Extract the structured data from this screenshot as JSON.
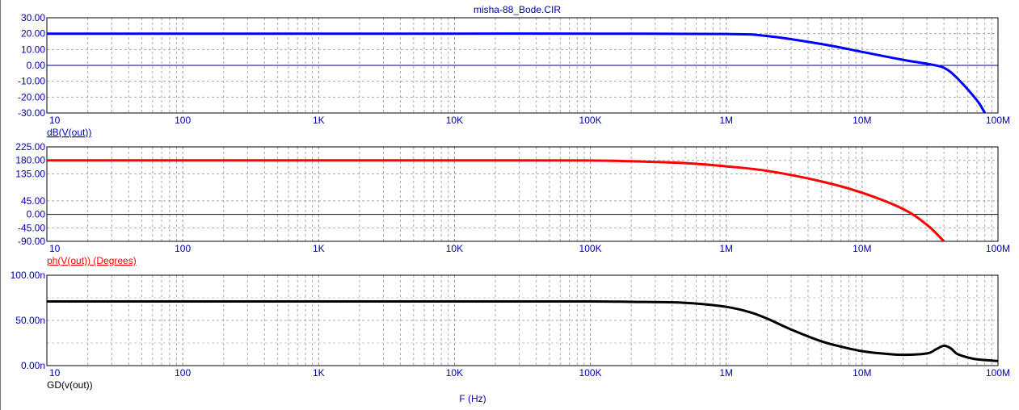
{
  "window": {
    "title": "misha-88_Bode.CIR"
  },
  "chart_data": [
    {
      "type": "line",
      "title": "misha-88_Bode.CIR",
      "xlabel": "",
      "ylabel": "dB(V(out))",
      "x_scale": "log",
      "xlim": [
        10,
        100000000
      ],
      "ylim": [
        -30,
        30
      ],
      "grid": true,
      "x_ticks": [
        {
          "value": 10,
          "label": "10"
        },
        {
          "value": 100,
          "label": "100"
        },
        {
          "value": 1000,
          "label": "1K"
        },
        {
          "value": 10000,
          "label": "10K"
        },
        {
          "value": 100000,
          "label": "100K"
        },
        {
          "value": 1000000,
          "label": "1M"
        },
        {
          "value": 10000000,
          "label": "10M"
        },
        {
          "value": 100000000,
          "label": "100M"
        }
      ],
      "y_ticks": [
        {
          "value": 30,
          "label": "30.00"
        },
        {
          "value": 20,
          "label": "20.00"
        },
        {
          "value": 10,
          "label": "10.00"
        },
        {
          "value": 0,
          "label": "0.00"
        },
        {
          "value": -10,
          "label": "-10.00"
        },
        {
          "value": -20,
          "label": "-20.00"
        },
        {
          "value": -30,
          "label": "-30.00"
        }
      ],
      "series": [
        {
          "name": "dB(V(out))",
          "color": "#0000ff",
          "x": [
            10,
            100,
            1000,
            10000,
            100000,
            1000000,
            2000000,
            5000000,
            10000000,
            20000000,
            30000000,
            40000000,
            50000000,
            70000000,
            80000000
          ],
          "y": [
            20,
            20,
            20,
            20,
            20,
            19.8,
            18.5,
            13.5,
            8.5,
            3.5,
            1.0,
            -1.5,
            -8,
            -22,
            -30
          ]
        }
      ]
    },
    {
      "type": "line",
      "xlabel": "",
      "ylabel": "ph(V(out)) (Degrees)",
      "x_scale": "log",
      "xlim": [
        10,
        100000000
      ],
      "ylim": [
        -90,
        225
      ],
      "grid": true,
      "x_ticks": [
        {
          "value": 10,
          "label": "10"
        },
        {
          "value": 100,
          "label": "100"
        },
        {
          "value": 1000,
          "label": "1K"
        },
        {
          "value": 10000,
          "label": "10K"
        },
        {
          "value": 100000,
          "label": "100K"
        },
        {
          "value": 1000000,
          "label": "1M"
        },
        {
          "value": 10000000,
          "label": "10M"
        },
        {
          "value": 100000000,
          "label": "100M"
        }
      ],
      "y_ticks": [
        {
          "value": 225,
          "label": "225.00"
        },
        {
          "value": 180,
          "label": "180.00"
        },
        {
          "value": 135,
          "label": "135.00"
        },
        {
          "value": 45,
          "label": "45.00"
        },
        {
          "value": 0,
          "label": "0.00"
        },
        {
          "value": -45,
          "label": "-45.00"
        },
        {
          "value": -90,
          "label": "-90.00"
        }
      ],
      "series": [
        {
          "name": "ph(V(out)) (Degrees)",
          "color": "#ff0000",
          "x": [
            10,
            100,
            1000,
            10000,
            100000,
            200000,
            500000,
            1000000,
            2000000,
            5000000,
            10000000,
            20000000,
            30000000,
            40000000
          ],
          "y": [
            180,
            180,
            180,
            180,
            179.5,
            177,
            171,
            160,
            145,
            110,
            72,
            18,
            -35,
            -90
          ]
        }
      ]
    },
    {
      "type": "line",
      "xlabel": "F (Hz)",
      "ylabel": "GD(v(out))",
      "x_scale": "log",
      "xlim": [
        10,
        100000000
      ],
      "ylim": [
        0,
        100
      ],
      "y_unit": "n",
      "grid": true,
      "x_ticks": [
        {
          "value": 10,
          "label": "10"
        },
        {
          "value": 100,
          "label": "100"
        },
        {
          "value": 1000,
          "label": "1K"
        },
        {
          "value": 10000,
          "label": "10K"
        },
        {
          "value": 100000,
          "label": "100K"
        },
        {
          "value": 1000000,
          "label": "1M"
        },
        {
          "value": 10000000,
          "label": "10M"
        },
        {
          "value": 100000000,
          "label": "100M"
        }
      ],
      "y_ticks": [
        {
          "value": 100,
          "label": "100.00n"
        },
        {
          "value": 50,
          "label": "50.00n"
        },
        {
          "value": 0,
          "label": "0.00n"
        }
      ],
      "series": [
        {
          "name": "GD(v(out))",
          "color": "#000000",
          "x": [
            10,
            100,
            1000,
            10000,
            100000,
            200000,
            500000,
            1000000,
            1500000,
            2000000,
            3000000,
            5000000,
            7000000,
            10000000,
            15000000,
            20000000,
            30000000,
            35000000,
            40000000,
            45000000,
            50000000,
            60000000,
            70000000,
            100000000
          ],
          "y": [
            71,
            71,
            71,
            71,
            71,
            70.5,
            69.5,
            65,
            59,
            52,
            40,
            27,
            21,
            16,
            13,
            12,
            13.5,
            18,
            22,
            19,
            13,
            9,
            7,
            5
          ]
        }
      ]
    }
  ]
}
